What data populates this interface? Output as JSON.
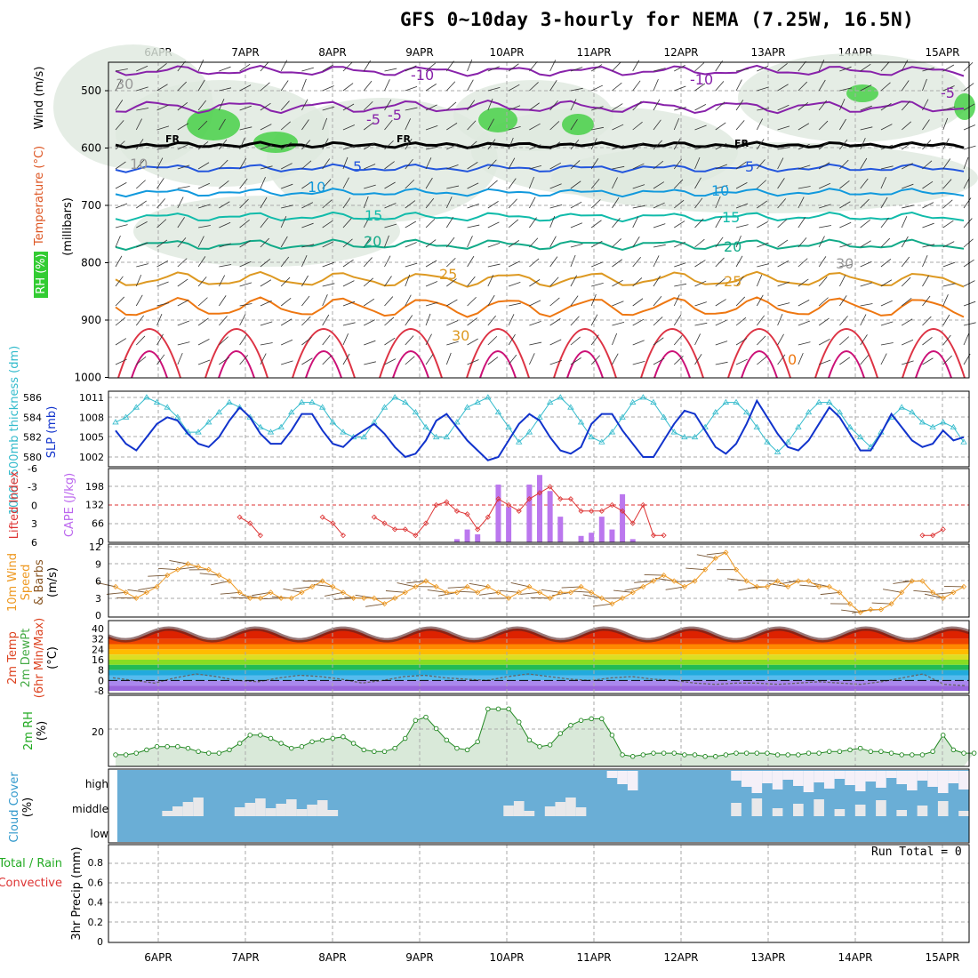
{
  "title": "GFS 0~10day 3-hourly for NEMA (7.25W, 16.5N)",
  "days": [
    "6APR",
    "7APR",
    "8APR",
    "9APR",
    "10APR",
    "11APR",
    "12APR",
    "13APR",
    "14APR",
    "15APR"
  ],
  "run_total": "Run Total = 0",
  "colors": {
    "rh_green": "#33cc33",
    "purple": "#9933cc",
    "cyan": "#33cccc",
    "blue": "#1144cc",
    "red": "#dd3333",
    "orange": "#dd9933",
    "sky": "#6aaed6"
  },
  "panels": {
    "upper": {
      "ylabel_wind": "Wind (m/s)",
      "ylabel_temp": "Temperature (°C)",
      "ylabel_rh": "RH (%)",
      "ylabel_mb": "(millibars)",
      "ticks": [
        "500",
        "600",
        "700",
        "800",
        "900",
        "1000"
      ],
      "contour_labels": [
        "-10",
        "-10",
        "-5",
        "-5",
        "-5",
        "FR",
        "FR",
        "FR",
        "5",
        "5",
        "10",
        "10",
        "15",
        "15",
        "20",
        "20",
        "25",
        "25",
        "30",
        "30",
        "30",
        "10",
        "0"
      ]
    },
    "thickness": {
      "ylabel_left": "1000~500mb thickness (dm)",
      "ylabel_right": "SLP (mb)",
      "left_ticks": [
        "586",
        "584",
        "582",
        "580"
      ],
      "right_ticks": [
        "1011",
        "1008",
        "1005",
        "1002"
      ]
    },
    "li": {
      "ylabel_left": "Lifted Index",
      "ylabel_right": "CAPE (J/kg)",
      "left_ticks": [
        "-6",
        "-3",
        "0",
        "3",
        "6"
      ],
      "right_ticks": [
        "198",
        "132",
        "66",
        "0"
      ]
    },
    "wind": {
      "ylabel": [
        "10m Wind",
        "Speed",
        "& Barbs",
        "(m/s)"
      ],
      "ticks": [
        "12",
        "9",
        "6",
        "3",
        "0"
      ]
    },
    "temp": {
      "ylabel": [
        "2m Temp",
        "2m DewPt",
        "(6hr Min/Max)",
        "(°C)"
      ],
      "ticks": [
        "40",
        "32",
        "24",
        "16",
        "8",
        "0",
        "-8"
      ]
    },
    "rh": {
      "ylabel": [
        "2m RH",
        "(%)"
      ],
      "ticks": [
        "20"
      ]
    },
    "cloud": {
      "ylabel": [
        "Cloud Cover",
        "(%)"
      ],
      "ticks": [
        "high",
        "middle",
        "low"
      ]
    },
    "precip": {
      "ylabel": [
        "Total / Rain",
        "Convective",
        "3hr Precip (mm)"
      ],
      "ticks": [
        "0.8",
        "0.6",
        "0.4",
        "0.2",
        "0"
      ]
    }
  },
  "chart_data": {
    "type": "line",
    "x_unit": "3-hourly steps (6APR 00Z = step 0)",
    "series": [
      {
        "name": "1000~500mb thickness (dm)",
        "values": [
          583.5,
          584,
          585,
          586,
          585.5,
          585,
          584,
          582.5,
          582.5,
          583.5,
          584.5,
          585.5,
          585,
          584,
          583,
          582.5,
          583,
          584.5,
          585.5,
          585.5,
          585,
          583.5,
          582.5,
          582,
          582,
          583.5,
          585,
          586,
          585.5,
          584.5,
          583,
          582,
          582,
          583.5,
          585,
          585.5,
          586,
          584.5,
          583,
          581.5,
          582.5,
          584,
          585.5,
          586,
          585,
          583.5,
          582,
          581.5,
          582.5,
          584,
          585.5,
          586,
          585.5,
          584,
          582.5,
          582,
          582,
          583,
          584.5,
          585.5,
          585.5,
          584.5,
          583,
          581.5,
          580.5,
          581.5,
          583,
          584.5,
          585.5,
          585.5,
          584.5,
          583,
          582,
          581,
          582.5,
          584,
          585,
          584.5,
          583.5,
          583,
          583.5,
          583,
          581.5
        ]
      },
      {
        "name": "SLP (mb)",
        "values": [
          1006,
          1004,
          1003,
          1005,
          1007,
          1008,
          1007.5,
          1005.5,
          1004,
          1003.5,
          1005,
          1007.5,
          1009.5,
          1008,
          1005.5,
          1004,
          1004,
          1006,
          1008.5,
          1008.5,
          1006,
          1004,
          1003.5,
          1005,
          1006,
          1007,
          1005.5,
          1003.5,
          1002,
          1002.5,
          1004.5,
          1007.5,
          1008.5,
          1006.5,
          1004.5,
          1003,
          1001.5,
          1002,
          1004.5,
          1007,
          1008.5,
          1007.5,
          1005,
          1003,
          1002.5,
          1003.5,
          1007,
          1008.5,
          1008.5,
          1006,
          1004,
          1002,
          1002,
          1004.5,
          1007,
          1009,
          1008.5,
          1006,
          1003.5,
          1002.5,
          1004,
          1007,
          1010.5,
          1008,
          1005.5,
          1003.5,
          1003,
          1004.5,
          1007,
          1009.5,
          1008,
          1005.5,
          1003,
          1003,
          1005.5,
          1008.5,
          1006.5,
          1004.5,
          1003.5,
          1004,
          1006,
          1004.5,
          1005
        ]
      },
      {
        "name": "2m RH (%)",
        "values": [
          6,
          6,
          7,
          9,
          11,
          11,
          11,
          10,
          8,
          7,
          7,
          9,
          13,
          18,
          18,
          16,
          13,
          10,
          11,
          14,
          15,
          16,
          17,
          13,
          9,
          8,
          8,
          10,
          16,
          27,
          29,
          22,
          15,
          10,
          9,
          14,
          34,
          34,
          34,
          26,
          15,
          11,
          12,
          19,
          24,
          27,
          28,
          28,
          18,
          6,
          5,
          6,
          7,
          7,
          7,
          6,
          6,
          5,
          5,
          6,
          7,
          7,
          7,
          7,
          6,
          6,
          6,
          7,
          7,
          8,
          8,
          9,
          10,
          8,
          8,
          7,
          6,
          6,
          6,
          8,
          18,
          9,
          7,
          7
        ]
      }
    ],
    "li_series": [
      6,
      6,
      5,
      6,
      6,
      6,
      6,
      6,
      6,
      6,
      6,
      6,
      2,
      3,
      5,
      6,
      6,
      6,
      6,
      6,
      2,
      3,
      5,
      6,
      6,
      2,
      3,
      4,
      4,
      5,
      3,
      0,
      -0.5,
      1,
      1.5,
      4,
      2,
      -1,
      0,
      1,
      -1,
      -2,
      -3,
      -1,
      -1,
      1,
      1,
      1,
      0,
      1,
      3,
      0,
      5,
      5,
      6,
      6,
      6,
      6,
      6,
      6,
      6,
      6,
      6,
      6,
      6,
      6,
      6,
      6,
      6,
      6,
      6,
      6,
      6,
      6,
      6,
      6,
      6,
      6,
      5,
      5,
      4,
      6,
      6,
      6
    ],
    "cape_bars": [
      {
        "step": 33,
        "value": 10
      },
      {
        "step": 34,
        "value": 40
      },
      {
        "step": 35,
        "value": 25
      },
      {
        "step": 37,
        "value": 180
      },
      {
        "step": 38,
        "value": 110
      },
      {
        "step": 40,
        "value": 180
      },
      {
        "step": 41,
        "value": 210
      },
      {
        "step": 42,
        "value": 160
      },
      {
        "step": 43,
        "value": 80
      },
      {
        "step": 45,
        "value": 20
      },
      {
        "step": 46,
        "value": 30
      },
      {
        "step": 47,
        "value": 80
      },
      {
        "step": 48,
        "value": 40
      },
      {
        "step": 49,
        "value": 150
      },
      {
        "step": 50,
        "value": 10
      }
    ],
    "wind_speed": [
      5,
      4,
      3,
      4,
      5,
      7,
      8,
      9,
      8.5,
      8,
      7,
      6,
      4,
      3,
      3,
      4,
      3,
      3,
      4,
      5,
      6,
      5,
      4,
      3,
      3,
      3,
      2,
      3,
      4,
      5,
      6,
      5,
      4,
      4,
      5,
      4,
      5,
      4,
      3,
      4,
      5,
      4,
      3,
      4,
      4,
      5,
      4,
      3,
      2,
      3,
      4,
      5,
      6,
      7,
      6,
      5,
      6,
      8,
      10,
      11,
      8,
      6,
      5,
      5,
      6,
      5,
      6,
      6,
      5,
      5,
      4,
      2,
      0.5,
      1,
      1,
      2,
      4,
      6,
      6,
      4,
      3,
      4,
      5
    ],
    "temp_max": [
      40,
      37,
      40,
      40,
      37,
      40,
      40,
      37,
      40,
      40,
      37,
      40,
      40,
      37,
      40,
      40,
      37,
      40,
      40,
      37,
      40,
      40,
      37,
      40,
      38,
      36,
      38
    ],
    "temp_min": [
      31,
      29,
      31,
      32,
      29,
      31,
      31,
      29,
      31,
      31,
      29,
      31,
      31,
      29,
      31,
      31,
      29,
      31,
      31,
      29,
      31,
      31,
      29,
      31,
      30,
      29,
      30
    ],
    "dewpoint": [
      2,
      0,
      -2,
      2,
      5,
      3,
      0,
      -1,
      2,
      4,
      3,
      1,
      -2,
      0,
      3,
      4,
      2,
      1,
      0,
      3,
      5,
      3,
      1,
      0,
      2,
      3,
      1,
      0,
      -2,
      -3,
      -2,
      -2,
      -3,
      -2,
      -1,
      -2,
      -3,
      -1,
      2,
      5,
      -3,
      -4
    ],
    "cloud_cover": {
      "high_steps": [
        48,
        49,
        50,
        60,
        61,
        62,
        63,
        64,
        65,
        66,
        67,
        68,
        69,
        70,
        71,
        72,
        73,
        74,
        75,
        76,
        77,
        78,
        79,
        80,
        81,
        82
      ],
      "middle_steps": [
        5,
        6,
        7,
        8,
        12,
        13,
        14,
        15,
        16,
        17,
        18,
        19,
        20,
        21,
        38,
        39,
        40,
        42,
        43,
        44,
        45,
        60,
        62,
        64,
        66,
        68,
        70,
        72,
        74,
        76,
        78,
        80,
        82
      ]
    },
    "precip_total": 0,
    "ylim_precip": [
      0,
      0.9
    ]
  }
}
